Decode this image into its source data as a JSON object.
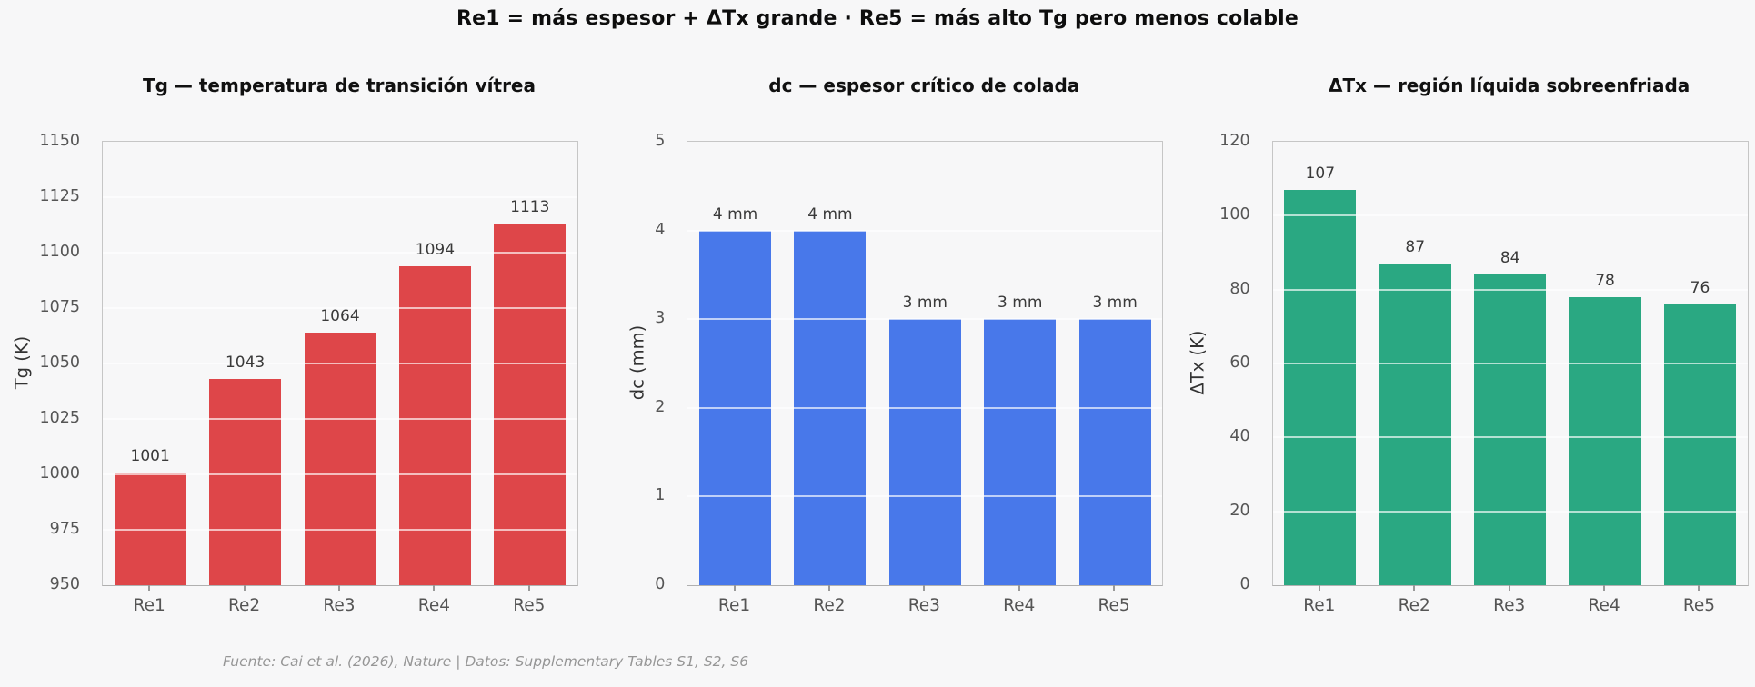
{
  "figure_title": "Re1 = más espesor + ΔTx grande · Re5 = más alto Tg pero menos colable",
  "footer": "Fuente: Cai et al. (2026), Nature | Datos: Supplementary Tables S1, S2, S6",
  "colors": {
    "tg_bar": "#de4649",
    "dc_bar": "#4878ea",
    "dtx_bar": "#2aa882",
    "background": "#f7f7f8",
    "gridline": "#ffffff"
  },
  "chart_data": [
    {
      "type": "bar",
      "title": "Tg — temperatura de transición vítrea",
      "ylabel": "Tg  (K)",
      "categories": [
        "Re1",
        "Re2",
        "Re3",
        "Re4",
        "Re5"
      ],
      "values": [
        1001,
        1043,
        1064,
        1094,
        1113
      ],
      "bar_labels": [
        "1001",
        "1043",
        "1064",
        "1094",
        "1113"
      ],
      "ylim": [
        950,
        1150
      ],
      "yticks": [
        950,
        975,
        1000,
        1025,
        1050,
        1075,
        1100,
        1125,
        1150
      ],
      "bar_color": "#de4649",
      "grid": true,
      "legend": "none"
    },
    {
      "type": "bar",
      "title": "dc — espesor crítico de colada",
      "ylabel": "dc  (mm)",
      "categories": [
        "Re1",
        "Re2",
        "Re3",
        "Re4",
        "Re5"
      ],
      "values": [
        4,
        4,
        3,
        3,
        3
      ],
      "bar_labels": [
        "4 mm",
        "4 mm",
        "3 mm",
        "3 mm",
        "3 mm"
      ],
      "ylim": [
        0,
        5
      ],
      "yticks": [
        0,
        1,
        2,
        3,
        4,
        5
      ],
      "bar_color": "#4878ea",
      "grid": true,
      "legend": "none"
    },
    {
      "type": "bar",
      "title": "ΔTx — región líquida sobreenfriada",
      "ylabel": "ΔTx  (K)",
      "categories": [
        "Re1",
        "Re2",
        "Re3",
        "Re4",
        "Re5"
      ],
      "values": [
        107,
        87,
        84,
        78,
        76
      ],
      "bar_labels": [
        "107",
        "87",
        "84",
        "78",
        "76"
      ],
      "ylim": [
        0,
        120
      ],
      "yticks": [
        0,
        20,
        40,
        60,
        80,
        100,
        120
      ],
      "bar_color": "#2aa882",
      "grid": true,
      "legend": "none"
    }
  ]
}
